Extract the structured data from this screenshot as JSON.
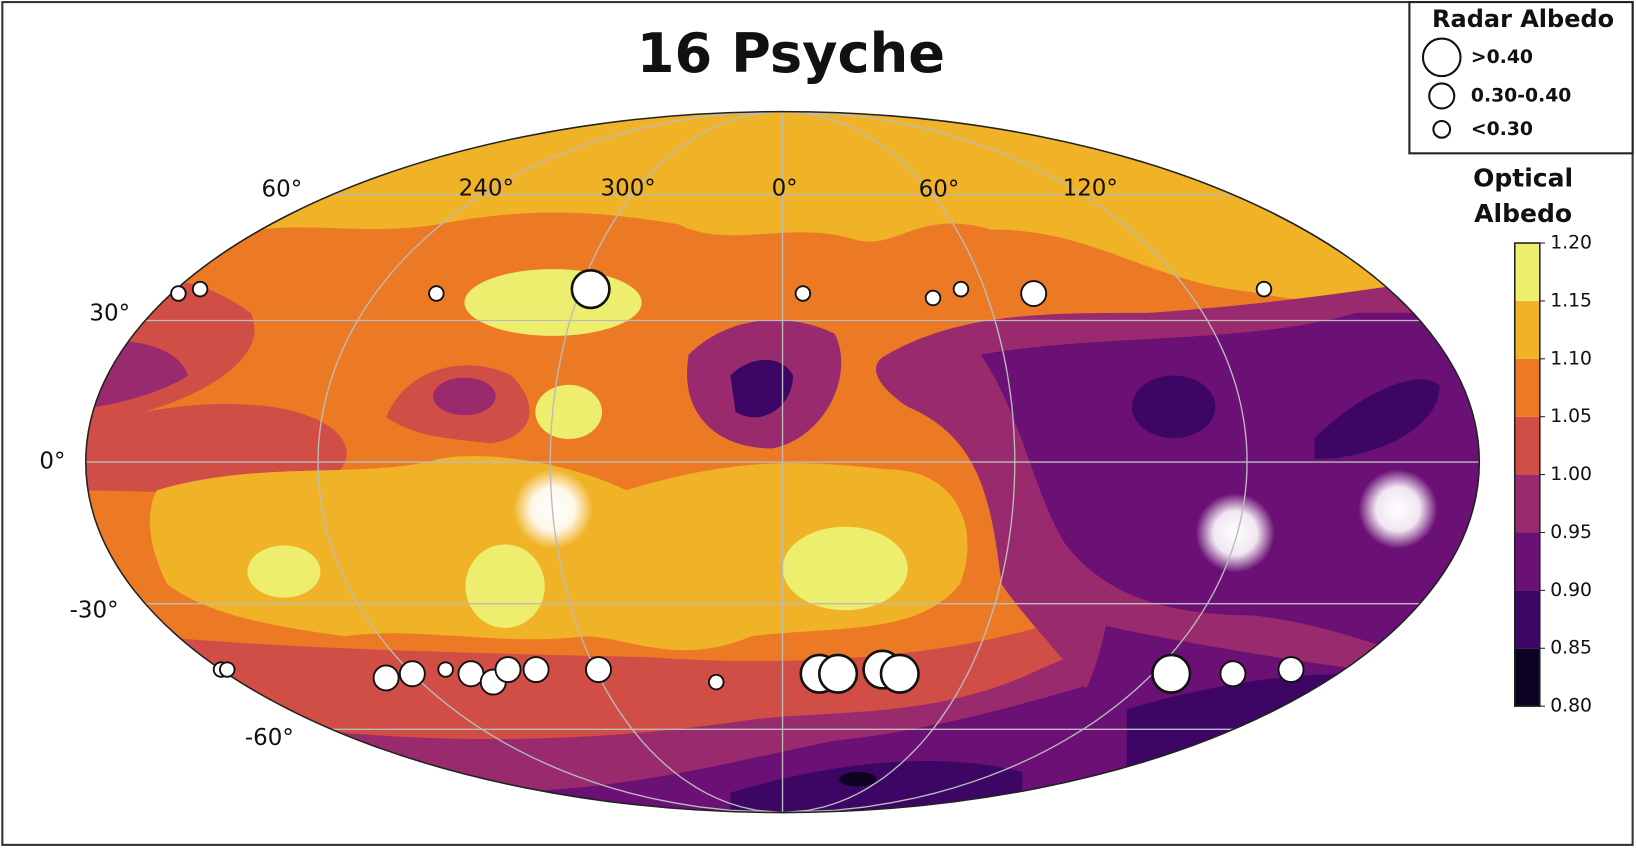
{
  "title": "16 Psyche",
  "radar_legend": {
    "title": "Radar Albedo",
    "classes": [
      ">0.40",
      "0.30-0.40",
      "<0.30"
    ]
  },
  "colorbar": {
    "title": [
      "Optical",
      "Albedo"
    ],
    "lim": [
      0.8,
      1.2
    ],
    "ticks": [
      {
        "value": 0.8,
        "label": "0.80"
      },
      0.85,
      {
        "value": 0.9,
        "label": "0.90"
      },
      0.95,
      {
        "value": 1,
        "label": "1.00"
      },
      1.05,
      {
        "value": 1.1,
        "label": "1.10"
      },
      1.15,
      {
        "value": 1.2,
        "label": "1.20"
      }
    ],
    "colors": [
      "#0d0221",
      "#3d0665",
      "#6b1075",
      "#9a2a6e",
      "#d04e45",
      "#ec7a25",
      "#f0b328",
      "#eeee6e"
    ]
  },
  "map": {
    "projection": "mollweide",
    "lon_labels": [
      "60°",
      "240°",
      "300°",
      "0°",
      "60°",
      "120°"
    ],
    "lat_labels": [
      "30°",
      "0°",
      "-30°",
      "-60°"
    ],
    "points": [
      {
        "lon": -178,
        "lat": 36,
        "class": "<0.30"
      },
      {
        "lon": -173,
        "lat": 37,
        "class": "<0.30"
      },
      {
        "lon": -102,
        "lat": 36,
        "class": "<0.30"
      },
      {
        "lon": -57,
        "lat": 37,
        "class": ">0.40"
      },
      {
        "lon": 6,
        "lat": 36,
        "class": "<0.30"
      },
      {
        "lon": 44,
        "lat": 35,
        "class": "<0.30"
      },
      {
        "lon": 53,
        "lat": 37,
        "class": "<0.30"
      },
      {
        "lon": 74,
        "lat": 36,
        "class": "0.30-0.40"
      },
      {
        "lon": 143,
        "lat": 37,
        "class": "<0.30"
      },
      {
        "lon": -180,
        "lat": -45,
        "class": "<0.30"
      },
      {
        "lon": -178,
        "lat": -45,
        "class": "<0.30"
      },
      {
        "lon": -130,
        "lat": -47,
        "class": "0.30-0.40"
      },
      {
        "lon": -120,
        "lat": -46,
        "class": "0.30-0.40"
      },
      {
        "lon": -108,
        "lat": -45,
        "class": "<0.30"
      },
      {
        "lon": -101,
        "lat": -46,
        "class": "0.30-0.40"
      },
      {
        "lon": -96,
        "lat": -48,
        "class": "0.30-0.40"
      },
      {
        "lon": -88,
        "lat": -45,
        "class": "0.30-0.40"
      },
      {
        "lon": -79,
        "lat": -45,
        "class": "0.30-0.40"
      },
      {
        "lon": -59,
        "lat": -45,
        "class": "0.30-0.40"
      },
      {
        "lon": -22,
        "lat": -48,
        "class": "<0.30"
      },
      {
        "lon": 12,
        "lat": -46,
        "class": ">0.40"
      },
      {
        "lon": 18,
        "lat": -46,
        "class": ">0.40"
      },
      {
        "lon": 32,
        "lat": -45,
        "class": ">0.40"
      },
      {
        "lon": 38,
        "lat": -46,
        "class": ">0.40"
      },
      {
        "lon": 126,
        "lat": -46,
        "class": ">0.40"
      },
      {
        "lon": 146,
        "lat": -46,
        "class": "0.30-0.40"
      },
      {
        "lon": 163,
        "lat": -45,
        "class": "0.30-0.40"
      }
    ]
  }
}
